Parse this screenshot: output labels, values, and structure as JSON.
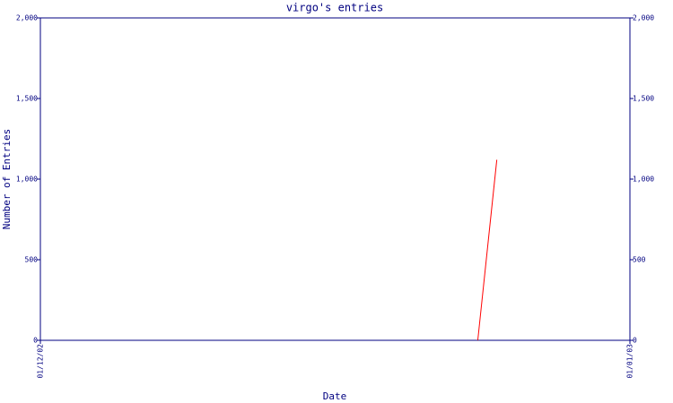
{
  "chart_data": {
    "type": "line",
    "title": "virgo's entries",
    "x_label": "Date",
    "y_label": "Number of Entries",
    "x": [
      "24/12/02",
      "25/12/02"
    ],
    "xlim": [
      "01/12/02",
      "01/01/03"
    ],
    "xticks": [
      "01/12/02",
      "01/01/03"
    ],
    "series": [
      {
        "name": "entries",
        "color": "#ff0000",
        "values": [
          0,
          1120
        ]
      }
    ],
    "ylim": [
      0,
      2000
    ],
    "yticks": [
      0,
      500,
      {
        "value": 1000,
        "label": "1,000"
      },
      {
        "value": 1500,
        "label": "1,500"
      },
      {
        "value": 2000,
        "label": "2,000"
      }
    ],
    "axis_color": "#000080"
  }
}
